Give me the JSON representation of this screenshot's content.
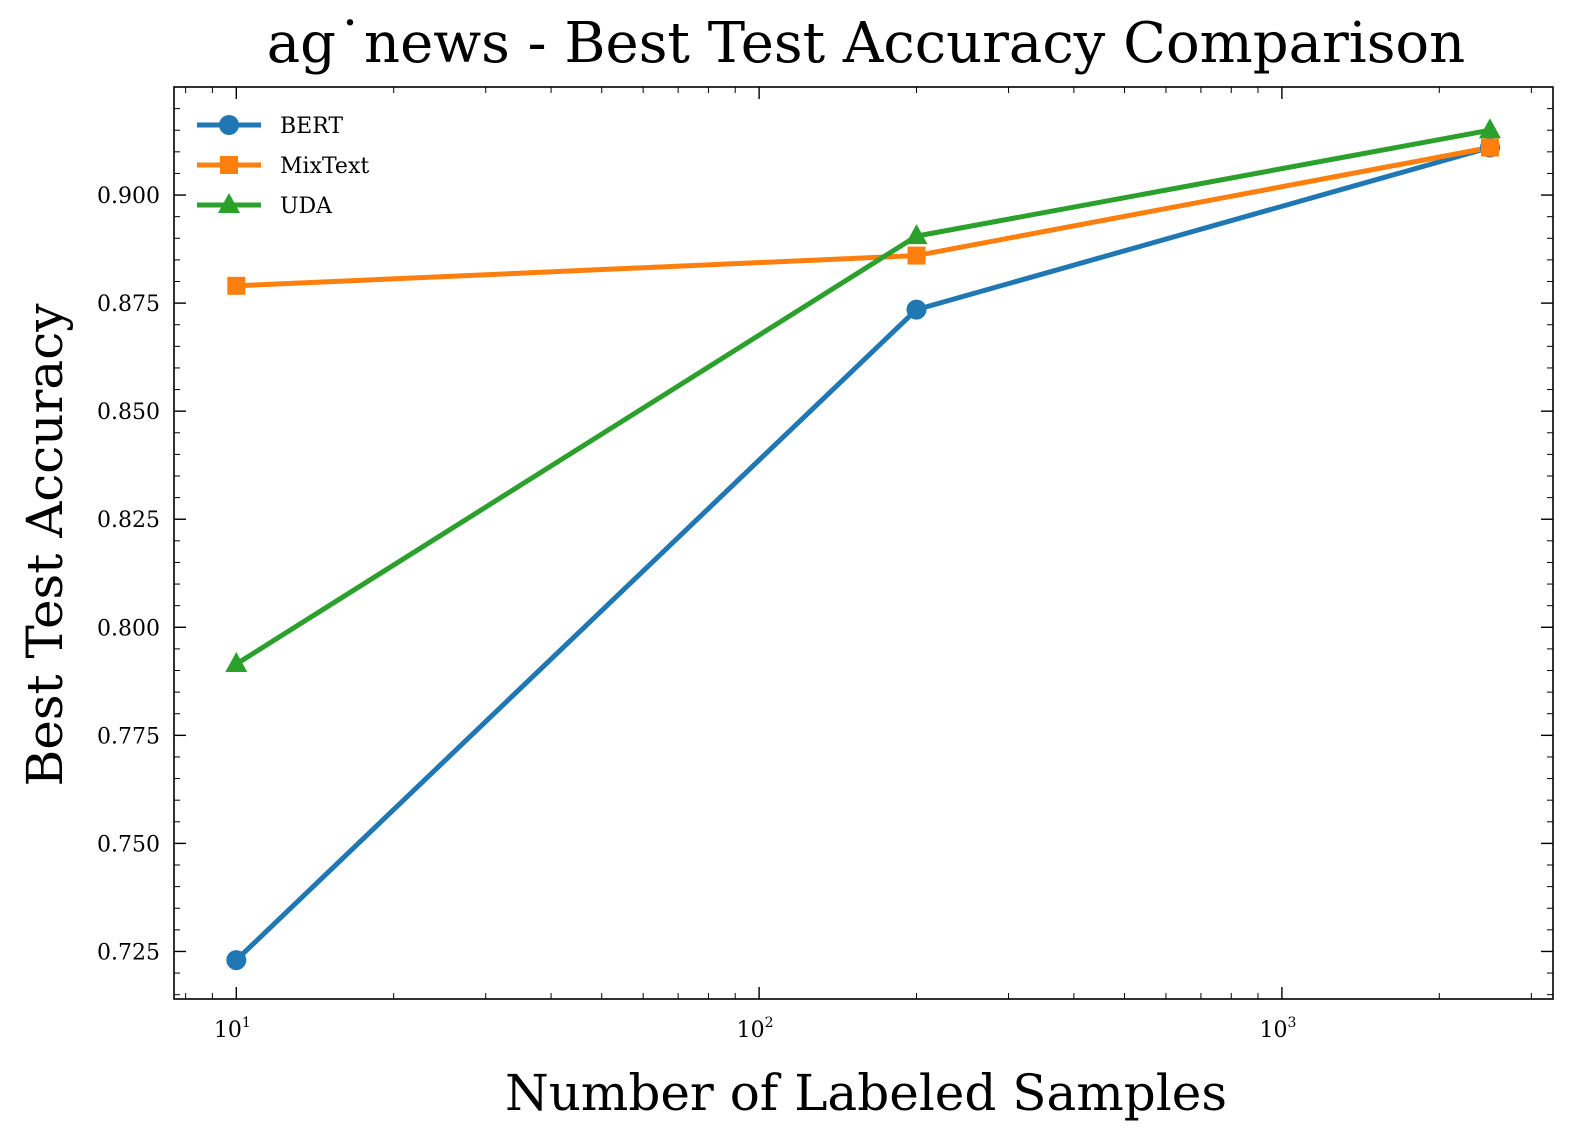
{
  "chart_data": {
    "type": "line",
    "title": "ag˙news - Best Test Accuracy Comparison",
    "xlabel": "Number of Labeled Samples",
    "ylabel": "Best Test Accuracy",
    "x_scale": "log",
    "xlim": [
      7.6,
      3300
    ],
    "ylim": [
      0.714,
      0.925
    ],
    "x_ticks": [
      {
        "value": 10,
        "base": "10",
        "exp": "1"
      },
      {
        "value": 100,
        "base": "10",
        "exp": "2"
      },
      {
        "value": 1000,
        "base": "10",
        "exp": "3"
      }
    ],
    "y_ticks": [
      {
        "value": 0.725,
        "label": "0.725"
      },
      {
        "value": 0.75,
        "label": "0.750"
      },
      {
        "value": 0.775,
        "label": "0.775"
      },
      {
        "value": 0.8,
        "label": "0.800"
      },
      {
        "value": 0.825,
        "label": "0.825"
      },
      {
        "value": 0.85,
        "label": "0.850"
      },
      {
        "value": 0.875,
        "label": "0.875"
      },
      {
        "value": 0.9,
        "label": "0.900"
      }
    ],
    "x": [
      10,
      200,
      2500
    ],
    "series": [
      {
        "name": "BERT",
        "color": "#1f77b4",
        "marker": "circle",
        "values": [
          0.723,
          0.8735,
          0.911
        ]
      },
      {
        "name": "MixText",
        "color": "#ff7f0e",
        "marker": "square",
        "values": [
          0.879,
          0.886,
          0.911
        ]
      },
      {
        "name": "UDA",
        "color": "#2ca02c",
        "marker": "triangle",
        "values": [
          0.7915,
          0.8905,
          0.915
        ]
      }
    ],
    "legend": "top-left",
    "grid": false
  }
}
